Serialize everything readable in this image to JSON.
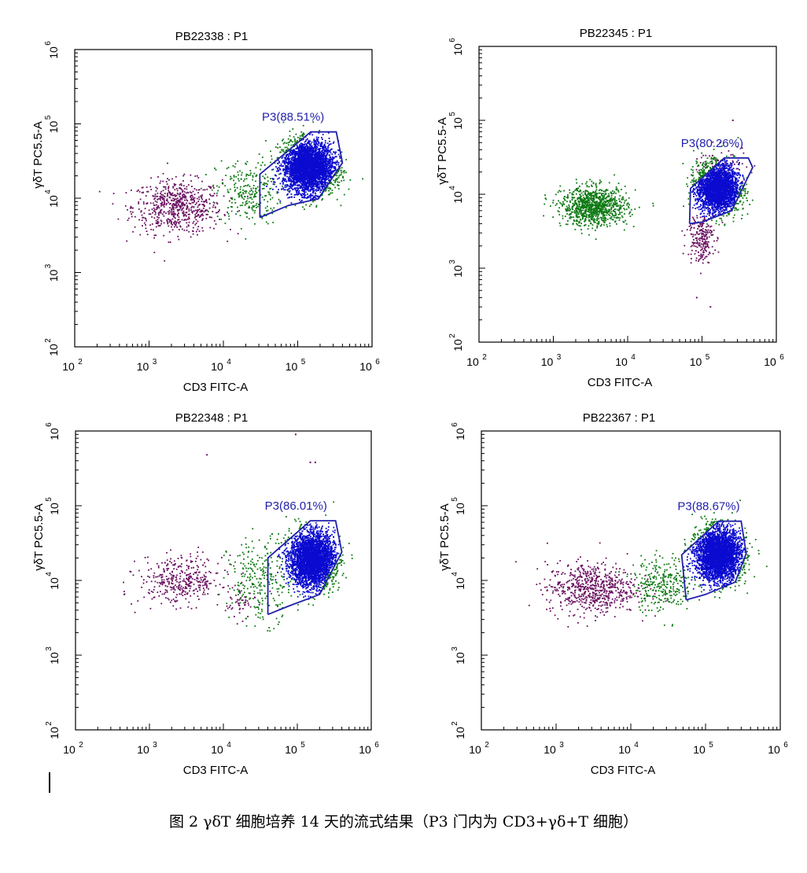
{
  "caption": "图 2 γδT 细胞培养 14 天的流式结果（P3 门内为 CD3+γδ+T 细胞）",
  "colors": {
    "gate": "#1f1faa",
    "p3": "#0a0ad0",
    "green": "#0f7a14",
    "purple": "#6a1060"
  },
  "chart_data": [
    {
      "type": "scatter",
      "title": "PB22338 : P1",
      "xlabel": "CD3 FITC-A",
      "ylabel": "γδT PC5.5-A",
      "xscale": "log",
      "yscale": "log",
      "xlim": [
        100,
        1000000
      ],
      "ylim": [
        100,
        1000000
      ],
      "xticks": [
        {
          "b": "10",
          "e": "2"
        },
        {
          "b": "10",
          "e": "3"
        },
        {
          "b": "10",
          "e": "4"
        },
        {
          "b": "10",
          "e": "5"
        },
        {
          "b": "10",
          "e": "6"
        }
      ],
      "yticks": [
        {
          "b": "10",
          "e": "2"
        },
        {
          "b": "10",
          "e": "3"
        },
        {
          "b": "10",
          "e": "4"
        },
        {
          "b": "10",
          "e": "5"
        },
        {
          "b": "10",
          "e": "6"
        }
      ],
      "gate": {
        "label": "P3(88.51%)",
        "polygon": [
          [
            31000,
            5500
          ],
          [
            75000,
            8000
          ],
          [
            190000,
            9800
          ],
          [
            400000,
            30000
          ],
          [
            330000,
            78000
          ],
          [
            150000,
            78000
          ],
          [
            31000,
            21000
          ],
          [
            31000,
            5500
          ]
        ]
      },
      "clusters": [
        {
          "color": "#6a1060",
          "n": 650,
          "cx": 2400,
          "cy": 7600,
          "sx": 0.3,
          "sy": 0.18
        },
        {
          "color": "#0f7a14",
          "n": 260,
          "cx": 22000,
          "cy": 12000,
          "sx": 0.22,
          "sy": 0.22
        },
        {
          "color": "#0a0ad0",
          "n": 3400,
          "cx": 140000,
          "cy": 26000,
          "sx": 0.17,
          "sy": 0.17
        }
      ],
      "outliers": []
    },
    {
      "type": "scatter",
      "title": "PB22345 : P1",
      "xlabel": "CD3 FITC-A",
      "ylabel": "γδT PC5.5-A",
      "xscale": "log",
      "yscale": "log",
      "xlim": [
        100,
        1000000
      ],
      "ylim": [
        100,
        1000000
      ],
      "xticks": [
        {
          "b": "10",
          "e": "2"
        },
        {
          "b": "10",
          "e": "3"
        },
        {
          "b": "10",
          "e": "4"
        },
        {
          "b": "10",
          "e": "5"
        },
        {
          "b": "10",
          "e": "6"
        }
      ],
      "yticks": [
        {
          "b": "10",
          "e": "2"
        },
        {
          "b": "10",
          "e": "3"
        },
        {
          "b": "10",
          "e": "4"
        },
        {
          "b": "10",
          "e": "5"
        },
        {
          "b": "10",
          "e": "6"
        }
      ],
      "gate": {
        "label": "P3(80.26%)",
        "polygon": [
          [
            68000,
            4000
          ],
          [
            100000,
            4200
          ],
          [
            250000,
            6000
          ],
          [
            480000,
            23000
          ],
          [
            420000,
            31000
          ],
          [
            200000,
            31000
          ],
          [
            70000,
            12000
          ],
          [
            68000,
            4000
          ]
        ]
      },
      "clusters": [
        {
          "color": "#0f7a14",
          "n": 1000,
          "cx": 3600,
          "cy": 6800,
          "sx": 0.22,
          "sy": 0.13
        },
        {
          "color": "#6a1060",
          "n": 220,
          "cx": 95000,
          "cy": 2600,
          "sx": 0.09,
          "sy": 0.17
        },
        {
          "color": "#6a1060",
          "n": 90,
          "cx": 190000,
          "cy": 22000,
          "sx": 0.2,
          "sy": 0.16
        },
        {
          "color": "#0a0ad0",
          "n": 2600,
          "cx": 165000,
          "cy": 12000,
          "sx": 0.14,
          "sy": 0.16
        }
      ],
      "outliers": [
        {
          "color": "#6a1060",
          "x": 85000,
          "y": 400
        },
        {
          "color": "#6a1060",
          "x": 130000,
          "y": 300
        },
        {
          "color": "#6a1060",
          "x": 260000,
          "y": 100000
        }
      ]
    },
    {
      "type": "scatter",
      "title": "PB22348 : P1",
      "xlabel": "CD3 FITC-A",
      "ylabel": "γδT PC5.5-A",
      "xscale": "log",
      "yscale": "log",
      "xlim": [
        100,
        1000000
      ],
      "ylim": [
        100,
        1000000
      ],
      "xticks": [
        {
          "b": "10",
          "e": "2"
        },
        {
          "b": "10",
          "e": "3"
        },
        {
          "b": "10",
          "e": "4"
        },
        {
          "b": "10",
          "e": "5"
        },
        {
          "b": "10",
          "e": "6"
        }
      ],
      "yticks": [
        {
          "b": "10",
          "e": "2"
        },
        {
          "b": "10",
          "e": "3"
        },
        {
          "b": "10",
          "e": "4"
        },
        {
          "b": "10",
          "e": "5"
        },
        {
          "b": "10",
          "e": "6"
        }
      ],
      "gate": {
        "label": "P3(86.01%)",
        "polygon": [
          [
            40000,
            3500
          ],
          [
            75000,
            4500
          ],
          [
            200000,
            6500
          ],
          [
            400000,
            24000
          ],
          [
            330000,
            63000
          ],
          [
            150000,
            63000
          ],
          [
            40000,
            20000
          ],
          [
            40000,
            3500
          ]
        ]
      },
      "clusters": [
        {
          "color": "#6a1060",
          "n": 380,
          "cx": 2700,
          "cy": 10000,
          "sx": 0.28,
          "sy": 0.16
        },
        {
          "color": "#6a1060",
          "n": 50,
          "cx": 17000,
          "cy": 5000,
          "sx": 0.1,
          "sy": 0.1
        },
        {
          "color": "#0f7a14",
          "n": 280,
          "cx": 32000,
          "cy": 10000,
          "sx": 0.22,
          "sy": 0.28
        },
        {
          "color": "#0a0ad0",
          "n": 3300,
          "cx": 160000,
          "cy": 19000,
          "sx": 0.15,
          "sy": 0.18
        }
      ],
      "outliers": [
        {
          "color": "#6a1060",
          "x": 6000,
          "y": 480000
        },
        {
          "color": "#6a1060",
          "x": 95000,
          "y": 900000
        },
        {
          "color": "#6a1060",
          "x": 150000,
          "y": 380000
        },
        {
          "color": "#6a1060",
          "x": 175000,
          "y": 380000
        }
      ]
    },
    {
      "type": "scatter",
      "title": "PB22367 : P1",
      "xlabel": "CD3 FITC-A",
      "ylabel": "γδT PC5.5-A",
      "xscale": "log",
      "yscale": "log",
      "xlim": [
        100,
        1000000
      ],
      "ylim": [
        100,
        1000000
      ],
      "xticks": [
        {
          "b": "10",
          "e": "2"
        },
        {
          "b": "10",
          "e": "3"
        },
        {
          "b": "10",
          "e": "4"
        },
        {
          "b": "10",
          "e": "5"
        },
        {
          "b": "10",
          "e": "6"
        }
      ],
      "yticks": [
        {
          "b": "10",
          "e": "2"
        },
        {
          "b": "10",
          "e": "3"
        },
        {
          "b": "10",
          "e": "4"
        },
        {
          "b": "10",
          "e": "5"
        },
        {
          "b": "10",
          "e": "6"
        }
      ],
      "gate": {
        "label": "P3(88.67%)",
        "polygon": [
          [
            55000,
            5500
          ],
          [
            100000,
            6500
          ],
          [
            250000,
            9500
          ],
          [
            350000,
            23000
          ],
          [
            300000,
            62000
          ],
          [
            150000,
            62000
          ],
          [
            48000,
            22000
          ],
          [
            55000,
            5500
          ]
        ]
      },
      "clusters": [
        {
          "color": "#6a1060",
          "n": 650,
          "cx": 3000,
          "cy": 7800,
          "sx": 0.3,
          "sy": 0.17
        },
        {
          "color": "#0f7a14",
          "n": 300,
          "cx": 27000,
          "cy": 9000,
          "sx": 0.2,
          "sy": 0.18
        },
        {
          "color": "#0a0ad0",
          "n": 3300,
          "cx": 150000,
          "cy": 22000,
          "sx": 0.15,
          "sy": 0.17
        }
      ],
      "outliers": []
    }
  ]
}
